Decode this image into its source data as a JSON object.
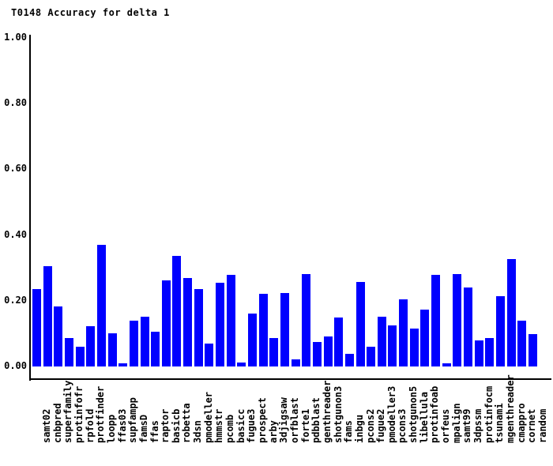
{
  "chart_data": {
    "type": "bar",
    "title": "T0148 Accuracy for delta 1",
    "xlabel": "",
    "ylabel": "",
    "ylim": [
      0.0,
      1.0
    ],
    "ytick_values": [
      0.0,
      0.2,
      0.4,
      0.6,
      0.8,
      1.0
    ],
    "ytick_labels": [
      "0.00",
      "0.20",
      "0.40",
      "0.60",
      "0.80",
      "1.00"
    ],
    "grid": false,
    "legend": false,
    "bar_color": "#0000ff",
    "axis_color": "#000000",
    "background_color": "#ffffff",
    "categories": [
      "samt02",
      "cnbpred",
      "superfamily",
      "protinfofr",
      "rpfold",
      "protfinder",
      "loopp",
      "ffas03",
      "supfampp",
      "famsD",
      "ffas",
      "raptor",
      "basicb",
      "robetta",
      "3dsn",
      "pmodeller",
      "hmmstr",
      "pcomb",
      "basicc",
      "fugue3",
      "prospect",
      "arby",
      "3djigsaw",
      "orfblast",
      "forte1",
      "pdbblast",
      "genthreader",
      "shotgunon3",
      "fams",
      "inbgu",
      "pcons2",
      "fugue2",
      "pmodeller3",
      "pcons3",
      "shotgunon5",
      "libellula",
      "protinfoab",
      "orfeus",
      "mpalign",
      "samt99",
      "3dpssm",
      "protinfocm",
      "tsunami",
      "mgenthreader",
      "cmappro",
      "cornet",
      "random"
    ],
    "values": [
      0.236,
      0.306,
      0.182,
      0.086,
      0.059,
      0.122,
      0.37,
      0.102,
      0.01,
      0.139,
      0.152,
      0.106,
      0.262,
      0.336,
      0.27,
      0.236,
      0.07,
      0.254,
      0.278,
      0.012,
      0.162,
      0.222,
      0.086,
      0.224,
      0.022,
      0.282,
      0.075,
      0.091,
      0.148,
      0.039,
      0.258,
      0.06,
      0.151,
      0.126,
      0.204,
      0.115,
      0.174,
      0.279,
      0.01,
      0.282,
      0.24,
      0.079,
      0.087,
      0.214,
      0.326,
      0.139,
      0.098
    ]
  }
}
